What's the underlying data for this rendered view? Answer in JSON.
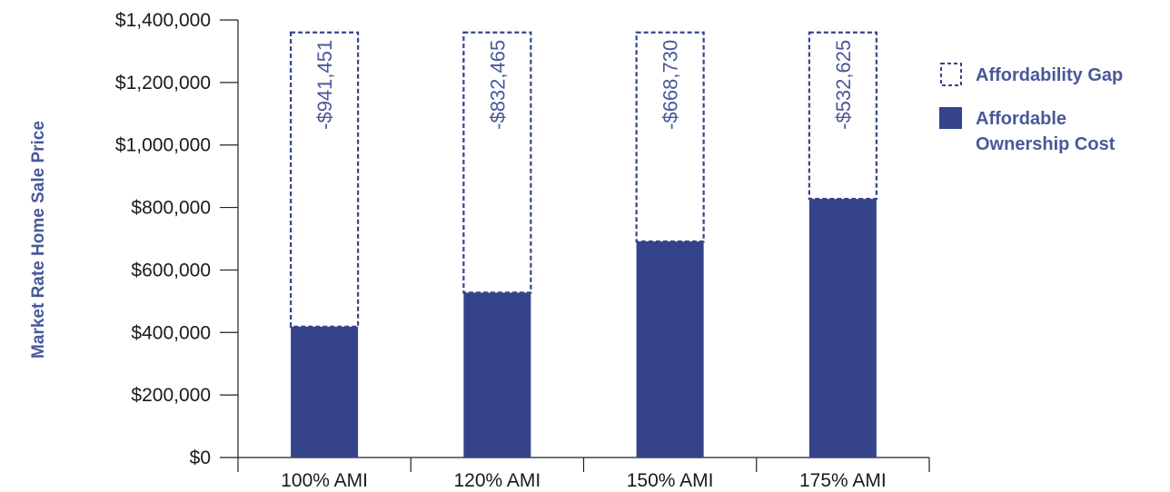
{
  "chart_data": {
    "type": "bar",
    "stacked": true,
    "categories": [
      "100% AMI",
      "120% AMI",
      "150% AMI",
      "175% AMI"
    ],
    "series": [
      {
        "name": "Affordable Ownership Cost",
        "values": [
          418549,
          527535,
          691270,
          827375
        ],
        "style": "solid"
      },
      {
        "name": "Affordability Gap",
        "values": [
          941451,
          832465,
          668730,
          532625
        ],
        "labels": [
          "-$941,451",
          "-$832,465",
          "-$668,730",
          "-$532,625"
        ],
        "style": "dashed-outline"
      }
    ],
    "ylabel": "Market Rate Home Sale Price",
    "xlabel": "",
    "ylim": [
      0,
      1400000
    ],
    "yticks": [
      0,
      200000,
      400000,
      600000,
      800000,
      1000000,
      1200000,
      1400000
    ],
    "ytick_labels": [
      "$0",
      "$200,000",
      "$400,000",
      "$600,000",
      "$800,000",
      "$1,000,000",
      "$1,200,000",
      "$1,400,000"
    ],
    "grid": false,
    "legend": {
      "placement": "right",
      "entries": [
        {
          "label": "Affordability Gap",
          "lines": [
            "Affordability Gap"
          ],
          "style": "dashed-outline"
        },
        {
          "label": "Affordable Ownership Cost",
          "lines": [
            "Affordable",
            "Ownership Cost"
          ],
          "style": "solid"
        }
      ]
    },
    "colors": {
      "bar": "#35448a",
      "label": "#4a5899",
      "axis": "#222222"
    }
  }
}
